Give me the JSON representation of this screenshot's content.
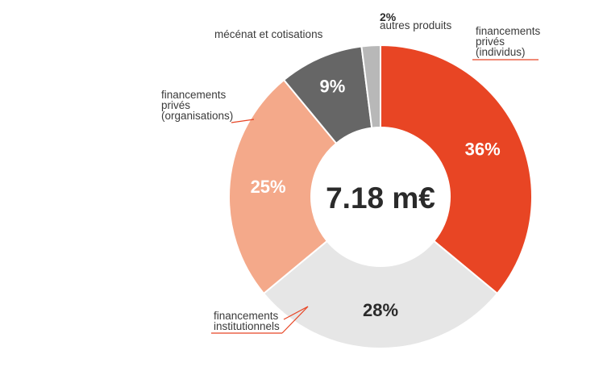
{
  "chart_data": {
    "type": "pie",
    "variant": "donut",
    "center_label": "7.18 m€",
    "slices": [
      {
        "label_lines": [
          "financements",
          "privés",
          "(individus)"
        ],
        "value": 36,
        "value_label": "36%",
        "color": "#e84524",
        "value_color": "#ffffff"
      },
      {
        "label_lines": [
          "financements",
          "institutionnels"
        ],
        "value": 28,
        "value_label": "28%",
        "color": "#e6e6e6",
        "value_color": "#2a2a2a"
      },
      {
        "label_lines": [
          "financements",
          "privés",
          "(organisations)"
        ],
        "value": 25,
        "value_label": "25%",
        "color": "#f4a98a",
        "value_color": "#ffffff"
      },
      {
        "label_lines": [
          "mécénat et cotisations"
        ],
        "value": 9,
        "value_label": "9%",
        "color": "#666666",
        "value_color": "#ffffff"
      },
      {
        "label_lines": [
          "autres produits"
        ],
        "value": 2,
        "value_label": "2%",
        "color": "#b8b8b8",
        "value_color": "#2a2a2a"
      }
    ],
    "leader_line_color": "#e84524"
  }
}
